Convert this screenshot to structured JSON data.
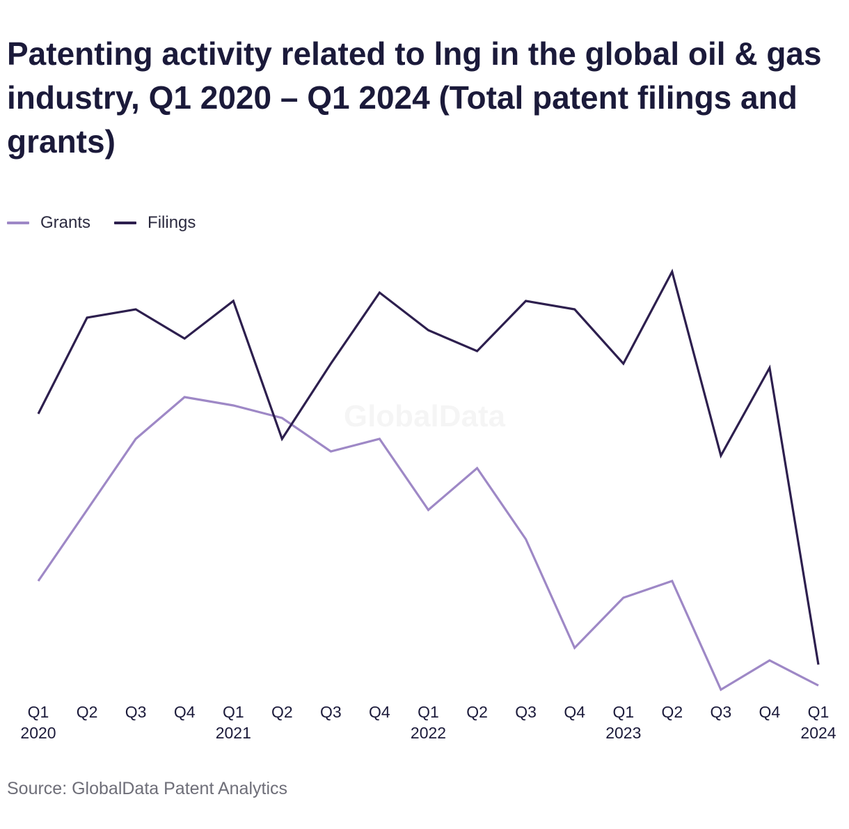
{
  "title": "Patenting activity related to lng in the global oil & gas industry, Q1 2020 – Q1 2024 (Total patent filings and grants)",
  "legend": {
    "grants_label": "Grants",
    "filings_label": "Filings"
  },
  "watermark": "GlobalData",
  "source": "Source: GlobalData Patent Analytics",
  "colors": {
    "grants": "#9e88c6",
    "filings": "#2d1f4e",
    "text": "#1b1a3a"
  },
  "chart_data": {
    "type": "line",
    "categories": [
      "Q1 2020",
      "Q2 2020",
      "Q3 2020",
      "Q4 2020",
      "Q1 2021",
      "Q2 2021",
      "Q3 2021",
      "Q4 2021",
      "Q1 2022",
      "Q2 2022",
      "Q3 2022",
      "Q4 2022",
      "Q1 2023",
      "Q2 2023",
      "Q3 2023",
      "Q4 2023",
      "Q1 2024"
    ],
    "tick_labels": [
      [
        "Q1",
        "2020"
      ],
      [
        "Q2",
        ""
      ],
      [
        "Q3",
        ""
      ],
      [
        "Q4",
        ""
      ],
      [
        "Q1",
        "2021"
      ],
      [
        "Q2",
        ""
      ],
      [
        "Q3",
        ""
      ],
      [
        "Q4",
        ""
      ],
      [
        "Q1",
        "2022"
      ],
      [
        "Q2",
        ""
      ],
      [
        "Q3",
        ""
      ],
      [
        "Q4",
        ""
      ],
      [
        "Q1",
        "2023"
      ],
      [
        "Q2",
        ""
      ],
      [
        "Q3",
        ""
      ],
      [
        "Q4",
        ""
      ],
      [
        "Q1",
        "2024"
      ]
    ],
    "series": [
      {
        "name": "Grants",
        "values": [
          26,
          43,
          60,
          70,
          68,
          65,
          57,
          60,
          43,
          53,
          36,
          10,
          22,
          26,
          0,
          7,
          1
        ]
      },
      {
        "name": "Filings",
        "values": [
          66,
          89,
          91,
          84,
          93,
          60,
          78,
          95,
          86,
          81,
          93,
          91,
          78,
          100,
          56,
          77,
          6
        ]
      }
    ],
    "ylim": [
      0,
      100
    ],
    "grid": false,
    "legend_position": "top-left"
  }
}
